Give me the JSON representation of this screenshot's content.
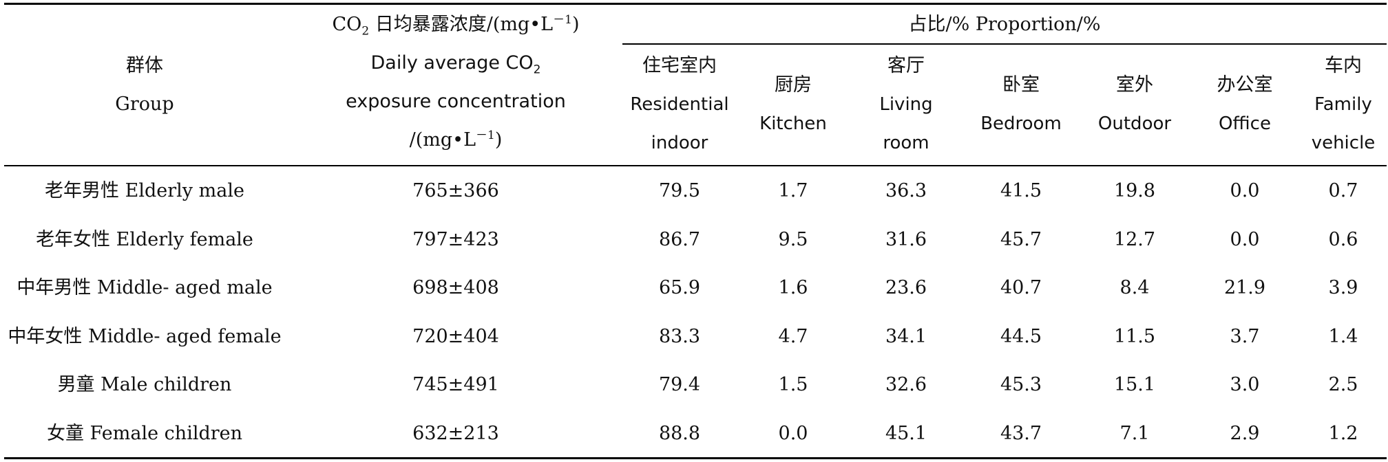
{
  "table": {
    "header": {
      "group": [
        "群体",
        "Group"
      ],
      "co2_top": {
        "pre": "CO",
        "sub": "2",
        "post": " 日均暴露浓度/(mg•L",
        "sup": "－1",
        "end": ")"
      },
      "co2_lines": {
        "l1_pre": "Daily average CO",
        "l1_sub": "2",
        "l2": "exposure concentration",
        "l3_pre": "/(mg•L",
        "l3_sup": "－1",
        "l3_end": ")"
      },
      "proportion": "占比/%  Proportion/%",
      "columns": [
        {
          "zh": "住宅室内",
          "en": [
            "Residential",
            "indoor"
          ]
        },
        {
          "zh": "厨房",
          "en": [
            "Kitchen"
          ]
        },
        {
          "zh": "客厅",
          "en": [
            "Living",
            "room"
          ]
        },
        {
          "zh": "卧室",
          "en": [
            "Bedroom"
          ]
        },
        {
          "zh": "室外",
          "en": [
            "Outdoor"
          ]
        },
        {
          "zh": "办公室",
          "en": [
            "Office"
          ]
        },
        {
          "zh": "车内",
          "en": [
            "Family",
            "vehicle"
          ]
        }
      ]
    },
    "rows": [
      {
        "group": "老年男性 Elderly male",
        "co2": "765±366",
        "vals": [
          "79.5",
          "1.7",
          "36.3",
          "41.5",
          "19.8",
          "0.0",
          "0.7"
        ]
      },
      {
        "group": "老年女性 Elderly female",
        "co2": "797±423",
        "vals": [
          "86.7",
          "9.5",
          "31.6",
          "45.7",
          "12.7",
          "0.0",
          "0.6"
        ]
      },
      {
        "group": "中年男性 Middle-  aged male",
        "co2": "698±408",
        "vals": [
          "65.9",
          "1.6",
          "23.6",
          "40.7",
          "8.4",
          "21.9",
          "3.9"
        ]
      },
      {
        "group": "中年女性 Middle-  aged female",
        "co2": "720±404",
        "vals": [
          "83.3",
          "4.7",
          "34.1",
          "44.5",
          "11.5",
          "3.7",
          "1.4"
        ]
      },
      {
        "group": "男童 Male children",
        "co2": "745±491",
        "vals": [
          "79.4",
          "1.5",
          "32.6",
          "45.3",
          "15.1",
          "3.0",
          "2.5"
        ]
      },
      {
        "group": "女童 Female children",
        "co2": "632±213",
        "vals": [
          "88.8",
          "0.0",
          "45.1",
          "43.7",
          "7.1",
          "2.9",
          "1.2"
        ]
      }
    ]
  }
}
